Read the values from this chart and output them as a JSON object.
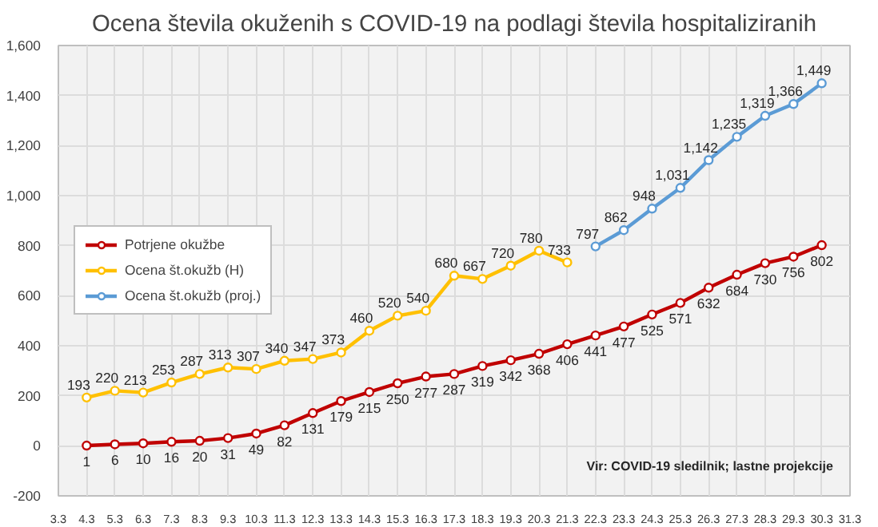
{
  "chart_data": {
    "type": "line",
    "title": "Ocena števila okuženih s COVID-19 na podlagi števila hospitaliziranih",
    "categories": [
      "3.3",
      "4.3",
      "5.3",
      "6.3",
      "7.3",
      "8.3",
      "9.3",
      "10.3",
      "11.3",
      "12.3",
      "13.3",
      "14.3",
      "15.3",
      "16.3",
      "17.3",
      "18.3",
      "19.3",
      "20.3",
      "21.3",
      "22.3",
      "23.3",
      "24.3",
      "25.3",
      "26.3",
      "27.3",
      "28.3",
      "29.3",
      "30.3",
      "31.3"
    ],
    "series": [
      {
        "name": "Potrjene okužbe",
        "color": "#c00000",
        "values": [
          null,
          1,
          6,
          10,
          16,
          20,
          31,
          49,
          82,
          131,
          179,
          215,
          250,
          277,
          287,
          319,
          342,
          368,
          406,
          441,
          477,
          525,
          571,
          632,
          684,
          730,
          756,
          802,
          null
        ],
        "value_labels": [
          null,
          "1",
          "6",
          "10",
          "16",
          "20",
          "31",
          "49",
          "82",
          "131",
          "179",
          "215",
          "250",
          "277",
          "287",
          "319",
          "342",
          "368",
          "406",
          "441",
          "477",
          "525",
          "571",
          "632",
          "684",
          "730",
          "756",
          "802",
          null
        ]
      },
      {
        "name": "Ocena št.okužb (H)",
        "color": "#ffc000",
        "values": [
          null,
          193,
          220,
          213,
          253,
          287,
          313,
          307,
          340,
          347,
          373,
          460,
          520,
          540,
          680,
          667,
          720,
          780,
          733,
          null,
          null,
          null,
          null,
          null,
          null,
          null,
          null,
          null,
          null
        ],
        "value_labels": [
          null,
          "193",
          "220",
          "213",
          "253",
          "287",
          "313",
          "307",
          "340",
          "347",
          "373",
          "460",
          "520",
          "540",
          "680",
          "667",
          "720",
          "780",
          "733",
          null,
          null,
          null,
          null,
          null,
          null,
          null,
          null,
          null,
          null
        ]
      },
      {
        "name": "Ocena št.okužb (proj.)",
        "color": "#5b9bd5",
        "values": [
          null,
          null,
          null,
          null,
          null,
          null,
          null,
          null,
          null,
          null,
          null,
          null,
          null,
          null,
          null,
          null,
          null,
          null,
          null,
          797,
          862,
          948,
          1031,
          1142,
          1235,
          1319,
          1366,
          1449,
          null
        ],
        "value_labels": [
          null,
          null,
          null,
          null,
          null,
          null,
          null,
          null,
          null,
          null,
          null,
          null,
          null,
          null,
          null,
          null,
          null,
          null,
          null,
          "797",
          "862",
          "948",
          "1,031",
          "1,142",
          "1,235",
          "1,319",
          "1,366",
          "1,449",
          null
        ]
      }
    ],
    "ylim": [
      -200,
      1600
    ],
    "yticks": [
      {
        "value": -200,
        "label": "-200"
      },
      0,
      200,
      400,
      600,
      800,
      {
        "value": 1000,
        "label": "1,000"
      },
      {
        "value": 1200,
        "label": "1,200"
      },
      {
        "value": 1400,
        "label": "1,400"
      },
      {
        "value": 1600,
        "label": "1,600"
      }
    ],
    "grid": true,
    "legend": "left",
    "marker": "circle",
    "line_style": "solid",
    "annotations": [
      "Vir: COVID-19 sledilnik; lastne projekcije"
    ]
  }
}
